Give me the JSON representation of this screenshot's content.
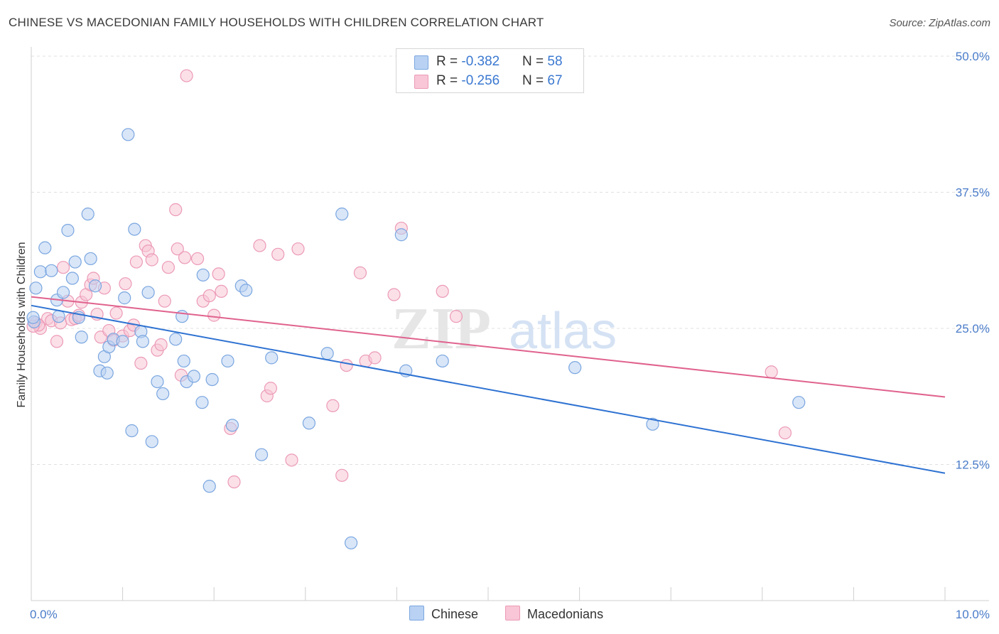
{
  "title": "CHINESE VS MACEDONIAN FAMILY HOUSEHOLDS WITH CHILDREN CORRELATION CHART",
  "source": "Source: ZipAtlas.com",
  "watermark": {
    "zip": "ZIP",
    "atlas": "atlas"
  },
  "legend": {
    "rows": [
      {
        "r_label": "R = ",
        "r_value": "-0.382",
        "n_label": "N = ",
        "n_value": "58"
      },
      {
        "r_label": "R = ",
        "r_value": "-0.256",
        "n_label": "N = ",
        "n_value": "67"
      }
    ]
  },
  "bottom_legend": {
    "chinese": "Chinese",
    "macedonians": "Macedonians"
  },
  "colors": {
    "chinese_fill": "#b9d2f3",
    "chinese_stroke": "#7aa6e0",
    "chinese_line": "#2e72d2",
    "macedonian_fill": "#f8c6d6",
    "macedonian_stroke": "#ec9ab6",
    "macedonian_line": "#e0628e",
    "grid": "#e0e0e0",
    "tick_text": "#4a7cc9"
  },
  "chart_data": {
    "type": "scatter",
    "title": "CHINESE VS MACEDONIAN FAMILY HOUSEHOLDS WITH CHILDREN CORRELATION CHART",
    "xlabel": "",
    "ylabel": "Family Households with Children",
    "xlim": [
      0,
      10
    ],
    "ylim": [
      0,
      50
    ],
    "x_tick_labels": [
      "0.0%",
      "10.0%"
    ],
    "y_ticks": [
      12.5,
      25.0,
      37.5,
      50.0
    ],
    "y_tick_labels": [
      "12.5%",
      "25.0%",
      "37.5%",
      "50.0%"
    ],
    "series": [
      {
        "name": "Chinese",
        "r": -0.382,
        "n": 58,
        "trend": {
          "x0": 0.0,
          "y0": 27.1,
          "x1": 10.0,
          "y1": 11.7
        },
        "points": [
          [
            0.03,
            25.6
          ],
          [
            0.05,
            28.7
          ],
          [
            0.1,
            30.2
          ],
          [
            0.15,
            32.4
          ],
          [
            0.22,
            30.3
          ],
          [
            0.28,
            27.6
          ],
          [
            0.3,
            26.1
          ],
          [
            0.35,
            28.3
          ],
          [
            0.4,
            34.0
          ],
          [
            0.45,
            29.6
          ],
          [
            0.48,
            31.1
          ],
          [
            0.52,
            26.0
          ],
          [
            0.55,
            24.2
          ],
          [
            0.62,
            35.5
          ],
          [
            0.65,
            31.4
          ],
          [
            0.7,
            28.9
          ],
          [
            0.75,
            21.1
          ],
          [
            0.8,
            22.4
          ],
          [
            0.83,
            20.9
          ],
          [
            0.85,
            23.3
          ],
          [
            0.9,
            24.0
          ],
          [
            1.0,
            23.8
          ],
          [
            1.02,
            27.8
          ],
          [
            1.06,
            42.8
          ],
          [
            1.1,
            15.6
          ],
          [
            1.13,
            34.1
          ],
          [
            1.2,
            24.7
          ],
          [
            1.22,
            23.8
          ],
          [
            1.28,
            28.3
          ],
          [
            1.32,
            14.6
          ],
          [
            1.38,
            20.1
          ],
          [
            1.44,
            19.0
          ],
          [
            1.58,
            24.0
          ],
          [
            1.65,
            26.1
          ],
          [
            1.67,
            22.0
          ],
          [
            1.7,
            20.1
          ],
          [
            1.78,
            20.6
          ],
          [
            1.87,
            18.2
          ],
          [
            1.88,
            29.9
          ],
          [
            1.95,
            10.5
          ],
          [
            1.98,
            20.3
          ],
          [
            2.15,
            22.0
          ],
          [
            2.2,
            16.1
          ],
          [
            2.3,
            28.9
          ],
          [
            2.35,
            28.5
          ],
          [
            2.52,
            13.4
          ],
          [
            2.63,
            22.3
          ],
          [
            3.04,
            16.3
          ],
          [
            3.24,
            22.7
          ],
          [
            3.4,
            35.5
          ],
          [
            3.5,
            5.3
          ],
          [
            4.05,
            33.6
          ],
          [
            4.1,
            21.1
          ],
          [
            4.5,
            22.0
          ],
          [
            5.95,
            21.4
          ],
          [
            6.8,
            16.2
          ],
          [
            8.4,
            18.2
          ],
          [
            0.02,
            26.0
          ]
        ]
      },
      {
        "name": "Macedonians",
        "r": -0.256,
        "n": 67,
        "trend": {
          "x0": 0.0,
          "y0": 27.9,
          "x1": 10.0,
          "y1": 18.7
        },
        "points": [
          [
            0.05,
            25.5
          ],
          [
            0.1,
            25.0
          ],
          [
            0.18,
            25.9
          ],
          [
            0.22,
            25.7
          ],
          [
            0.28,
            23.8
          ],
          [
            0.32,
            25.5
          ],
          [
            0.35,
            30.6
          ],
          [
            0.4,
            27.5
          ],
          [
            0.44,
            25.8
          ],
          [
            0.48,
            25.9
          ],
          [
            0.52,
            26.2
          ],
          [
            0.55,
            27.4
          ],
          [
            0.6,
            28.1
          ],
          [
            0.65,
            29.0
          ],
          [
            0.68,
            29.6
          ],
          [
            0.72,
            26.3
          ],
          [
            0.76,
            24.2
          ],
          [
            0.8,
            28.7
          ],
          [
            0.85,
            24.8
          ],
          [
            0.9,
            23.9
          ],
          [
            0.93,
            26.4
          ],
          [
            1.0,
            24.3
          ],
          [
            1.03,
            29.1
          ],
          [
            1.08,
            24.8
          ],
          [
            1.12,
            25.3
          ],
          [
            1.15,
            31.1
          ],
          [
            1.2,
            21.8
          ],
          [
            1.25,
            32.6
          ],
          [
            1.28,
            32.1
          ],
          [
            1.32,
            31.3
          ],
          [
            1.38,
            23.0
          ],
          [
            1.42,
            23.5
          ],
          [
            1.46,
            27.5
          ],
          [
            1.5,
            30.6
          ],
          [
            1.58,
            35.9
          ],
          [
            1.6,
            32.3
          ],
          [
            1.64,
            20.7
          ],
          [
            1.68,
            31.5
          ],
          [
            1.82,
            31.4
          ],
          [
            1.88,
            27.5
          ],
          [
            1.95,
            28.0
          ],
          [
            2.0,
            26.2
          ],
          [
            2.05,
            30.0
          ],
          [
            2.08,
            28.4
          ],
          [
            2.18,
            15.8
          ],
          [
            2.22,
            10.9
          ],
          [
            2.5,
            32.6
          ],
          [
            2.58,
            18.8
          ],
          [
            2.62,
            19.5
          ],
          [
            2.7,
            31.8
          ],
          [
            2.85,
            12.9
          ],
          [
            2.92,
            32.3
          ],
          [
            3.3,
            17.9
          ],
          [
            3.4,
            11.5
          ],
          [
            3.45,
            21.6
          ],
          [
            3.6,
            30.1
          ],
          [
            3.66,
            22.0
          ],
          [
            3.76,
            22.3
          ],
          [
            3.97,
            28.1
          ],
          [
            4.05,
            34.2
          ],
          [
            4.5,
            28.4
          ],
          [
            4.65,
            26.1
          ],
          [
            8.1,
            21.0
          ],
          [
            8.25,
            15.4
          ],
          [
            1.7,
            48.2
          ],
          [
            0.08,
            25.3
          ],
          [
            0.02,
            25.2
          ]
        ]
      }
    ]
  }
}
